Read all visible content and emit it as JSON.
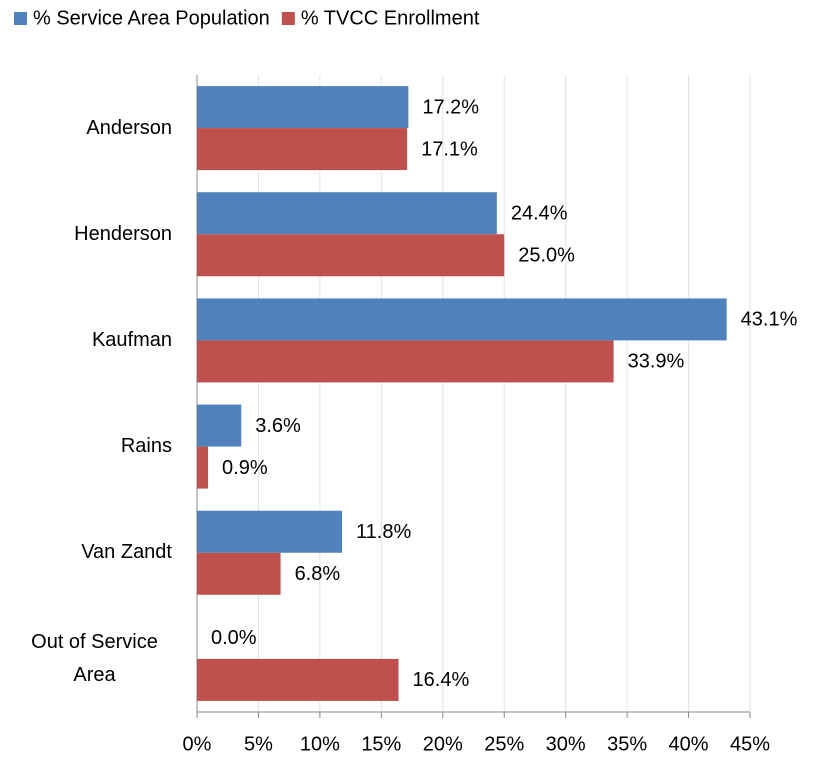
{
  "chart_data": {
    "type": "barh",
    "categories": [
      "Anderson",
      "Henderson",
      "Kaufman",
      "Rains",
      "Van Zandt",
      "Out of Service Area"
    ],
    "series": [
      {
        "name": "% Service Area Population",
        "color": "#4f81bd",
        "values": [
          17.2,
          24.4,
          43.1,
          3.6,
          11.8,
          0.0
        ],
        "value_labels": [
          "17.2%",
          "24.4%",
          "43.1%",
          "3.6%",
          "11.8%",
          "0.0%"
        ]
      },
      {
        "name": "% TVCC Enrollment",
        "color": "#c0504d",
        "values": [
          17.1,
          25.0,
          33.9,
          0.9,
          6.8,
          16.4
        ],
        "value_labels": [
          "17.1%",
          "25.0%",
          "33.9%",
          "0.9%",
          "6.8%",
          "16.4%"
        ]
      }
    ],
    "xlim": [
      0,
      45
    ],
    "xticks": [
      {
        "value": 0,
        "label": "0%"
      },
      {
        "value": 5,
        "label": "5%"
      },
      {
        "value": 10,
        "label": "10%"
      },
      {
        "value": 15,
        "label": "15%"
      },
      {
        "value": 20,
        "label": "20%"
      },
      {
        "value": 25,
        "label": "25%"
      },
      {
        "value": 30,
        "label": "30%"
      },
      {
        "value": 35,
        "label": "35%"
      },
      {
        "value": 40,
        "label": "40%"
      },
      {
        "value": 45,
        "label": "45%"
      }
    ],
    "grid": true,
    "legend": "top-left"
  }
}
